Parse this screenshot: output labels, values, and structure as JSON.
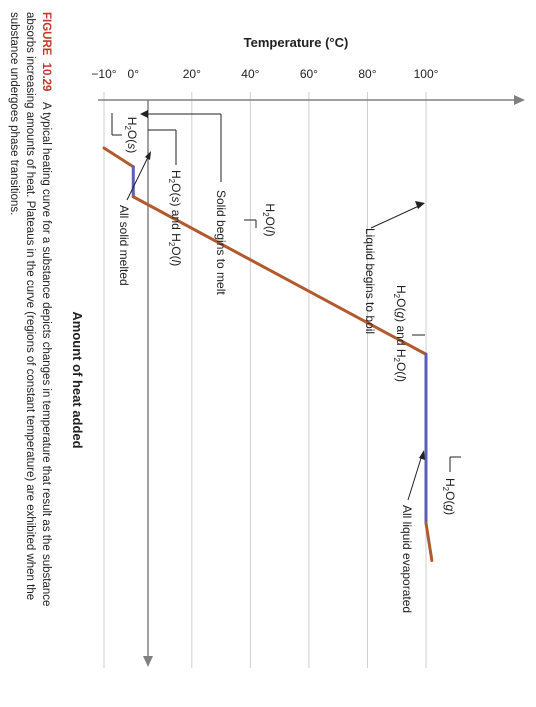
{
  "chart_data": {
    "type": "line",
    "ylabel": "Temperature (°C)",
    "xlabel": "Amount of heat added",
    "ylim": [
      -10,
      100
    ],
    "yticks": [
      "−10°",
      "0°",
      "20°",
      "40°",
      "60°",
      "80°",
      "100°"
    ],
    "grid": true,
    "colors": {
      "heating": "#b05a2e",
      "plateau": "#5b5fb5",
      "axis": "#808080"
    },
    "points": [
      {
        "x": 0,
        "y": -10
      },
      {
        "x": 5,
        "y": 0
      },
      {
        "x": 13,
        "y": 0
      },
      {
        "x": 55,
        "y": 100
      },
      {
        "x": 100,
        "y": 100
      },
      {
        "x": 110,
        "y": 102
      }
    ],
    "segments": [
      {
        "from": 0,
        "to": 5,
        "kind": "heating",
        "label": "H2O(s)"
      },
      {
        "from": 5,
        "to": 13,
        "kind": "plateau",
        "label": "H2O(s) and H2O(l)"
      },
      {
        "from": 13,
        "to": 55,
        "kind": "heating",
        "label": "H2O(l)"
      },
      {
        "from": 55,
        "to": 100,
        "kind": "plateau",
        "label": "H2O(g) and H2O(l)"
      },
      {
        "from": 100,
        "to": 110,
        "kind": "heating",
        "label": "H2O(g)"
      }
    ],
    "annotations": [
      "Solid begins to melt",
      "All solid melted",
      "Liquid begins to boil",
      "All liquid evaporated"
    ]
  },
  "caption": {
    "figure_label": "FIGURE",
    "figure_number": "10.29",
    "line1": "A typical heating curve for a substance depicts changes in temperature that result as the substance",
    "line2": "absorbs increasing amounts of heat. Plateaus in the curve (regions of constant temperature) are exhibited when the",
    "line3": "substance undergoes phase transitions."
  }
}
